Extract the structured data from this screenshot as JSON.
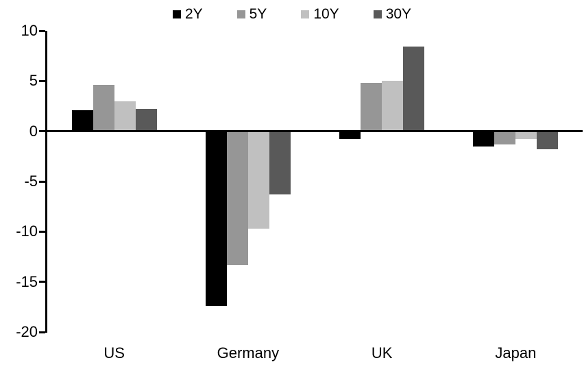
{
  "chart_data": {
    "type": "bar",
    "title": "",
    "xlabel": "",
    "ylabel": "",
    "categories": [
      "US",
      "Germany",
      "UK",
      "Japan"
    ],
    "series": [
      {
        "name": "2Y",
        "color": "#000000",
        "values": [
          2.1,
          -17.4,
          -0.8,
          -1.5
        ]
      },
      {
        "name": "5Y",
        "color": "#969696",
        "values": [
          4.6,
          -13.3,
          4.8,
          -1.3
        ]
      },
      {
        "name": "10Y",
        "color": "#c0c0c0",
        "values": [
          3.0,
          -9.7,
          5.0,
          -0.8
        ]
      },
      {
        "name": "30Y",
        "color": "#595959",
        "values": [
          2.2,
          -6.3,
          8.4,
          -1.8
        ]
      }
    ],
    "ylim": [
      -20,
      10
    ],
    "yticks": [
      10,
      5,
      0,
      -5,
      -10,
      -15,
      -20
    ],
    "grid": false,
    "legend_position": "top-center",
    "axis_color": "#000000",
    "background_color": "#ffffff"
  }
}
